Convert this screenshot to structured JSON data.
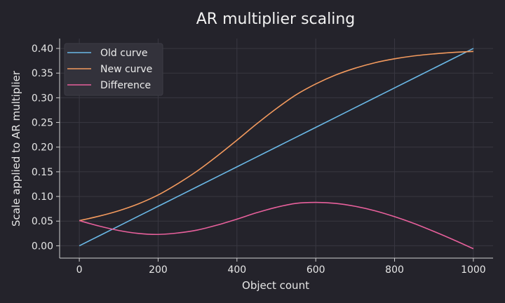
{
  "chart_data": {
    "type": "line",
    "title": "AR multiplier scaling",
    "xlabel": "Object count",
    "ylabel": "Scale applied to AR multiplier",
    "xlim": [
      -50,
      1050
    ],
    "ylim": [
      -0.025,
      0.42
    ],
    "xticks": [
      0,
      200,
      400,
      600,
      800,
      1000
    ],
    "xtick_labels": [
      "0",
      "200",
      "400",
      "600",
      "800",
      "1000"
    ],
    "yticks": [
      0.0,
      0.05,
      0.1,
      0.15,
      0.2,
      0.25,
      0.3,
      0.35,
      0.4
    ],
    "ytick_labels": [
      "0.00",
      "0.05",
      "0.10",
      "0.15",
      "0.20",
      "0.25",
      "0.30",
      "0.35",
      "0.40"
    ],
    "grid": true,
    "legend_position": "top-left",
    "x": [
      0,
      50,
      100,
      150,
      200,
      250,
      300,
      350,
      400,
      450,
      500,
      550,
      600,
      650,
      700,
      750,
      800,
      850,
      900,
      950,
      1000
    ],
    "series": [
      {
        "name": "Old curve",
        "color": "#6ab8e6",
        "values": [
          0.0,
          0.02,
          0.04,
          0.06,
          0.08,
          0.1,
          0.12,
          0.14,
          0.16,
          0.18,
          0.2,
          0.22,
          0.24,
          0.26,
          0.28,
          0.3,
          0.32,
          0.34,
          0.36,
          0.38,
          0.4
        ]
      },
      {
        "name": "New curve",
        "color": "#f39a5e",
        "values": [
          0.051,
          0.06,
          0.071,
          0.085,
          0.103,
          0.126,
          0.152,
          0.182,
          0.214,
          0.247,
          0.278,
          0.306,
          0.328,
          0.346,
          0.36,
          0.371,
          0.379,
          0.385,
          0.389,
          0.392,
          0.394
        ]
      },
      {
        "name": "Difference",
        "color": "#e8609c",
        "values": [
          0.051,
          0.04,
          0.031,
          0.025,
          0.023,
          0.026,
          0.032,
          0.042,
          0.054,
          0.067,
          0.078,
          0.086,
          0.088,
          0.086,
          0.08,
          0.071,
          0.059,
          0.045,
          0.029,
          0.012,
          -0.006
        ]
      }
    ]
  }
}
